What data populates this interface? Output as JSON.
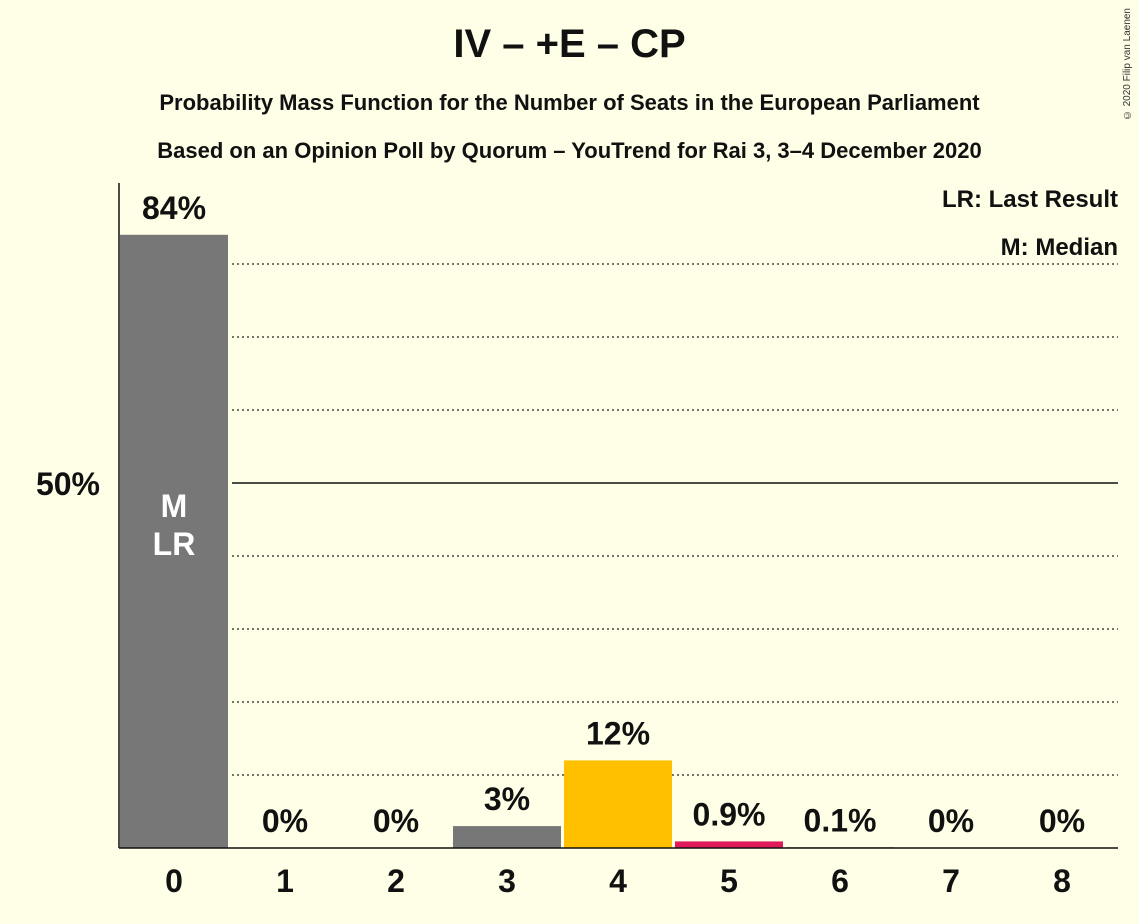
{
  "title": "IV – +E – CP",
  "subtitle1": "Probability Mass Function for the Number of Seats in the European Parliament",
  "subtitle2": "Based on an Opinion Poll by Quorum – YouTrend for Rai 3, 3–4 December 2020",
  "copyright": "© 2020 Filip van Laenen",
  "legend": {
    "last_result": "LR: Last Result",
    "median": "M: Median"
  },
  "colors": {
    "background": "#FFFEE6",
    "grey": "#777777",
    "yellow": "#FFC000",
    "pink": "#E0195A"
  },
  "chart_data": {
    "type": "bar",
    "categories": [
      "0",
      "1",
      "2",
      "3",
      "4",
      "5",
      "6",
      "7",
      "8"
    ],
    "values": [
      84,
      0,
      0,
      3,
      12,
      0.9,
      0.1,
      0,
      0
    ],
    "value_labels": [
      "84%",
      "0%",
      "0%",
      "3%",
      "12%",
      "0.9%",
      "0.1%",
      "0%",
      "0%"
    ],
    "bar_colors": [
      "#777777",
      "#777777",
      "#777777",
      "#777777",
      "#FFC000",
      "#E0195A",
      "#777777",
      "#777777",
      "#777777"
    ],
    "bar_annotations": {
      "0": [
        "M",
        "LR"
      ]
    },
    "ylim": [
      0,
      85
    ],
    "y_tick_label": "50%",
    "y_tick_value": 50,
    "gridlines": [
      10,
      20,
      30,
      40,
      60,
      70,
      80
    ]
  }
}
